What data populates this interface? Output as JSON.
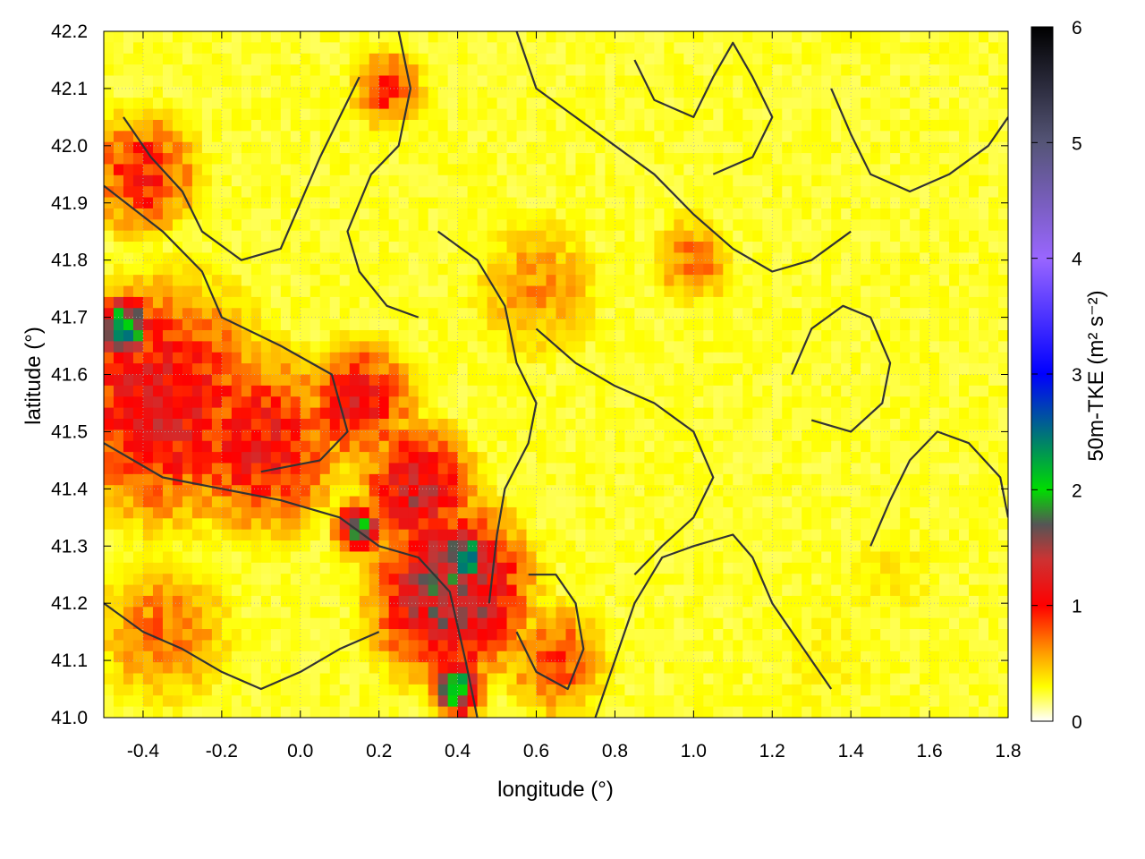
{
  "chart_data": {
    "type": "heatmap",
    "title": "",
    "xlabel": "longitude (°)",
    "ylabel": "latitude (°)",
    "xlim": [
      -0.5,
      1.8
    ],
    "ylim": [
      41.0,
      42.2
    ],
    "x_ticks": [
      "-0.4",
      "-0.2",
      "0.0",
      "0.2",
      "0.4",
      "0.6",
      "0.8",
      "1.0",
      "1.2",
      "1.4",
      "1.6",
      "1.8"
    ],
    "y_ticks": [
      "41.0",
      "41.1",
      "41.2",
      "41.3",
      "41.4",
      "41.5",
      "41.6",
      "41.7",
      "41.8",
      "41.9",
      "42.0",
      "42.1",
      "42.2"
    ],
    "grid": true,
    "overlay": "terrain elevation contours",
    "colorbar": {
      "label": "50m-TKE (m² s⁻²)",
      "range": [
        0,
        6
      ],
      "ticks": [
        "0",
        "1",
        "2",
        "3",
        "4",
        "5",
        "6"
      ],
      "colors": [
        "#ffffff",
        "#ffff00",
        "#ff9900",
        "#ff0000",
        "#cc3333",
        "#555555",
        "#00dd00",
        "#0000ff",
        "#9966ff",
        "#555577",
        "#000000"
      ],
      "stops": [
        0,
        0.3,
        0.6,
        1.0,
        1.4,
        1.7,
        2.0,
        3.0,
        4.0,
        5.0,
        6.0
      ]
    },
    "field_regions": [
      {
        "lon": -0.35,
        "lat": 41.55,
        "value": 1.2,
        "radius": 0.28
      },
      {
        "lon": -0.1,
        "lat": 41.48,
        "value": 1.1,
        "radius": 0.22
      },
      {
        "lon": -0.4,
        "lat": 41.95,
        "value": 1.0,
        "radius": 0.15
      },
      {
        "lon": 0.15,
        "lat": 41.55,
        "value": 1.1,
        "radius": 0.15
      },
      {
        "lon": 0.38,
        "lat": 41.22,
        "value": 1.6,
        "radius": 0.2
      },
      {
        "lon": 0.3,
        "lat": 41.4,
        "value": 1.3,
        "radius": 0.15
      },
      {
        "lon": -0.45,
        "lat": 41.68,
        "value": 2.4,
        "radius": 0.07
      },
      {
        "lon": 0.42,
        "lat": 41.28,
        "value": 2.6,
        "radius": 0.06
      },
      {
        "lon": 0.4,
        "lat": 41.05,
        "value": 2.2,
        "radius": 0.06
      },
      {
        "lon": 0.15,
        "lat": 41.33,
        "value": 1.8,
        "radius": 0.06
      },
      {
        "lon": 0.22,
        "lat": 42.1,
        "value": 0.9,
        "radius": 0.1
      },
      {
        "lon": 0.6,
        "lat": 41.75,
        "value": 0.6,
        "radius": 0.2
      },
      {
        "lon": 1.0,
        "lat": 41.8,
        "value": 0.7,
        "radius": 0.12
      },
      {
        "lon": -0.35,
        "lat": 41.15,
        "value": 0.7,
        "radius": 0.2
      },
      {
        "lon": 0.65,
        "lat": 41.1,
        "value": 0.8,
        "radius": 0.15
      },
      {
        "lon": 1.35,
        "lat": 41.1,
        "value": 0.3,
        "radius": 0.35
      },
      {
        "lon": 1.3,
        "lat": 41.6,
        "value": 0.2,
        "radius": 0.3
      },
      {
        "lon": 1.55,
        "lat": 42.0,
        "value": 0.15,
        "radius": 0.3
      },
      {
        "lon": 1.5,
        "lat": 41.25,
        "value": 0.35,
        "radius": 0.2
      },
      {
        "lon": 1.0,
        "lat": 41.4,
        "value": 0.25,
        "radius": 0.25
      }
    ]
  }
}
